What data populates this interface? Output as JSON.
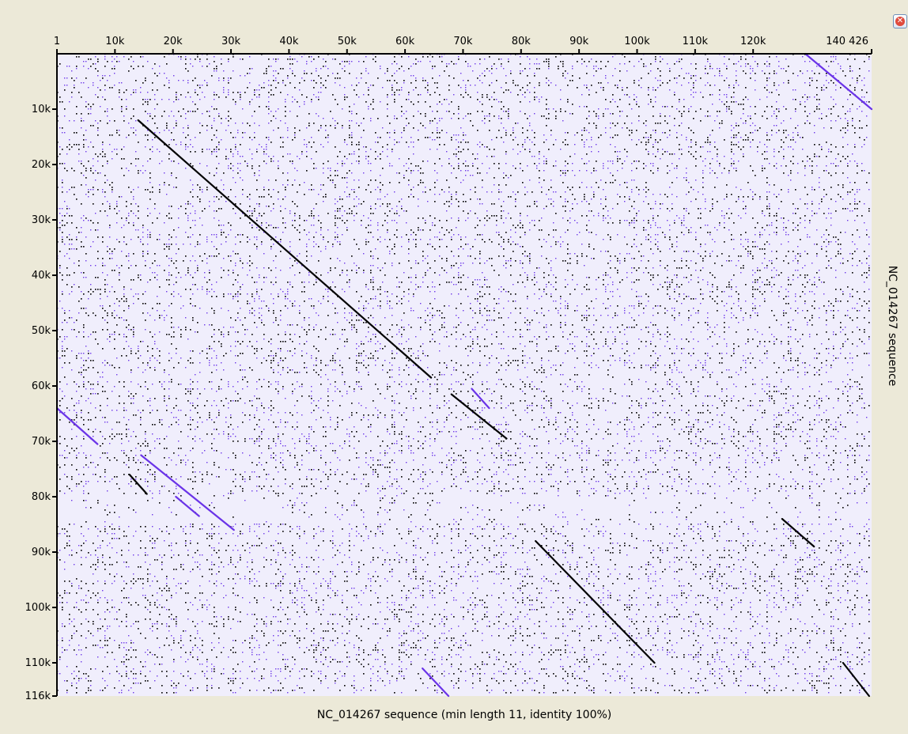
{
  "window": {
    "close_symbol": "✕"
  },
  "chart_data": {
    "type": "scatter",
    "title": "",
    "xlabel": "NC_014267 sequence (min length 11, identity 100%)",
    "ylabel": "NC_014267 sequence",
    "x_tick_labels": [
      "1",
      "10k",
      "20k",
      "30k",
      "40k",
      "50k",
      "60k",
      "70k",
      "80k",
      "90k",
      "100k",
      "110k",
      "120k",
      "140 426"
    ],
    "x_tick_values": [
      1,
      10000,
      20000,
      30000,
      40000,
      50000,
      60000,
      70000,
      80000,
      90000,
      100000,
      110000,
      120000,
      140426
    ],
    "y_tick_labels": [
      "10k",
      "20k",
      "30k",
      "40k",
      "50k",
      "60k",
      "70k",
      "80k",
      "90k",
      "100k",
      "110k",
      "116k"
    ],
    "y_tick_values": [
      10000,
      20000,
      30000,
      40000,
      50000,
      60000,
      70000,
      80000,
      90000,
      100000,
      110000,
      116000
    ],
    "xlim": [
      1,
      140426
    ],
    "ylim": [
      1,
      116000
    ],
    "y_inverted": true,
    "grid": false,
    "series": [
      {
        "color": "#000000",
        "background_density": 0.55,
        "lines": [
          {
            "x": [
              14000,
              64500
            ],
            "y": [
              12000,
              58500
            ]
          },
          {
            "x": [
              68000,
              77500
            ],
            "y": [
              61500,
              69500
            ]
          },
          {
            "x": [
              82500,
              103000
            ],
            "y": [
              88000,
              110000
            ]
          },
          {
            "x": [
              12500,
              15500
            ],
            "y": [
              76000,
              79500
            ]
          },
          {
            "x": [
              125000,
              130500
            ],
            "y": [
              84000,
              89000
            ]
          },
          {
            "x": [
              135500,
              140000
            ],
            "y": [
              110000,
              116000
            ]
          }
        ]
      },
      {
        "color": "#6a33e8",
        "background_density": 0.45,
        "lines": [
          {
            "x": [
              129000,
              140426
            ],
            "y": [
              1,
              10000
            ]
          },
          {
            "x": [
              1,
              7000
            ],
            "y": [
              64000,
              70500
            ]
          },
          {
            "x": [
              14500,
              30500
            ],
            "y": [
              72500,
              86000
            ]
          },
          {
            "x": [
              63000,
              67500
            ],
            "y": [
              111000,
              116000
            ]
          },
          {
            "x": [
              71500,
              74500
            ],
            "y": [
              60500,
              64000
            ]
          },
          {
            "x": [
              20500,
              24500
            ],
            "y": [
              80000,
              83500
            ]
          }
        ]
      }
    ],
    "background_color": "#f0eefc",
    "panel_color": "#ece9d8"
  }
}
